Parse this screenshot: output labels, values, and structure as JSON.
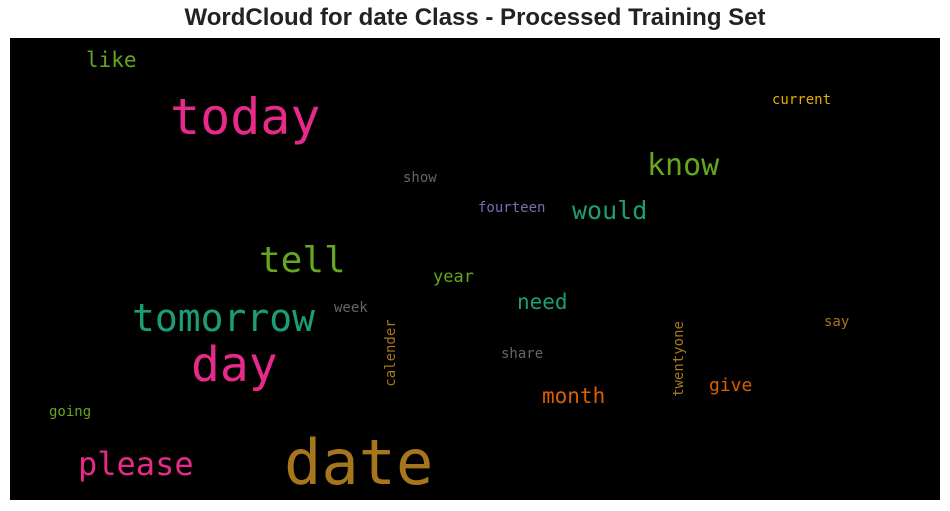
{
  "chart_data": {
    "type": "wordcloud",
    "title": "WordCloud for date Class - Processed Training Set",
    "background": "#000000",
    "words": [
      {
        "text": "date",
        "weight": 1.0,
        "color": "#a6761d",
        "orientation": "horizontal"
      },
      {
        "text": "today",
        "weight": 0.78,
        "color": "#e7298a",
        "orientation": "horizontal"
      },
      {
        "text": "day",
        "weight": 0.7,
        "color": "#e7298a",
        "orientation": "horizontal"
      },
      {
        "text": "tomorrow",
        "weight": 0.58,
        "color": "#1b9e77",
        "orientation": "horizontal"
      },
      {
        "text": "tell",
        "weight": 0.52,
        "color": "#66a61e",
        "orientation": "horizontal"
      },
      {
        "text": "please",
        "weight": 0.48,
        "color": "#e7298a",
        "orientation": "horizontal"
      },
      {
        "text": "know",
        "weight": 0.45,
        "color": "#66a61e",
        "orientation": "horizontal"
      },
      {
        "text": "would",
        "weight": 0.38,
        "color": "#1b9e77",
        "orientation": "horizontal"
      },
      {
        "text": "need",
        "weight": 0.32,
        "color": "#1b9e77",
        "orientation": "horizontal"
      },
      {
        "text": "month",
        "weight": 0.32,
        "color": "#d95f02",
        "orientation": "horizontal"
      },
      {
        "text": "like",
        "weight": 0.3,
        "color": "#66a61e",
        "orientation": "horizontal"
      },
      {
        "text": "give",
        "weight": 0.26,
        "color": "#d95f02",
        "orientation": "horizontal"
      },
      {
        "text": "year",
        "weight": 0.24,
        "color": "#66a61e",
        "orientation": "horizontal"
      },
      {
        "text": "calender",
        "weight": 0.18,
        "color": "#a6761d",
        "orientation": "vertical"
      },
      {
        "text": "twentyone",
        "weight": 0.18,
        "color": "#a6761d",
        "orientation": "vertical"
      },
      {
        "text": "current",
        "weight": 0.18,
        "color": "#e6ab02",
        "orientation": "horizontal"
      },
      {
        "text": "fourteen",
        "weight": 0.18,
        "color": "#7570b3",
        "orientation": "horizontal"
      },
      {
        "text": "show",
        "weight": 0.18,
        "color": "#666666",
        "orientation": "horizontal"
      },
      {
        "text": "week",
        "weight": 0.18,
        "color": "#666666",
        "orientation": "horizontal"
      },
      {
        "text": "share",
        "weight": 0.18,
        "color": "#666666",
        "orientation": "horizontal"
      },
      {
        "text": "say",
        "weight": 0.18,
        "color": "#a6761d",
        "orientation": "horizontal"
      },
      {
        "text": "going",
        "weight": 0.18,
        "color": "#66a61e",
        "orientation": "horizontal"
      }
    ]
  }
}
